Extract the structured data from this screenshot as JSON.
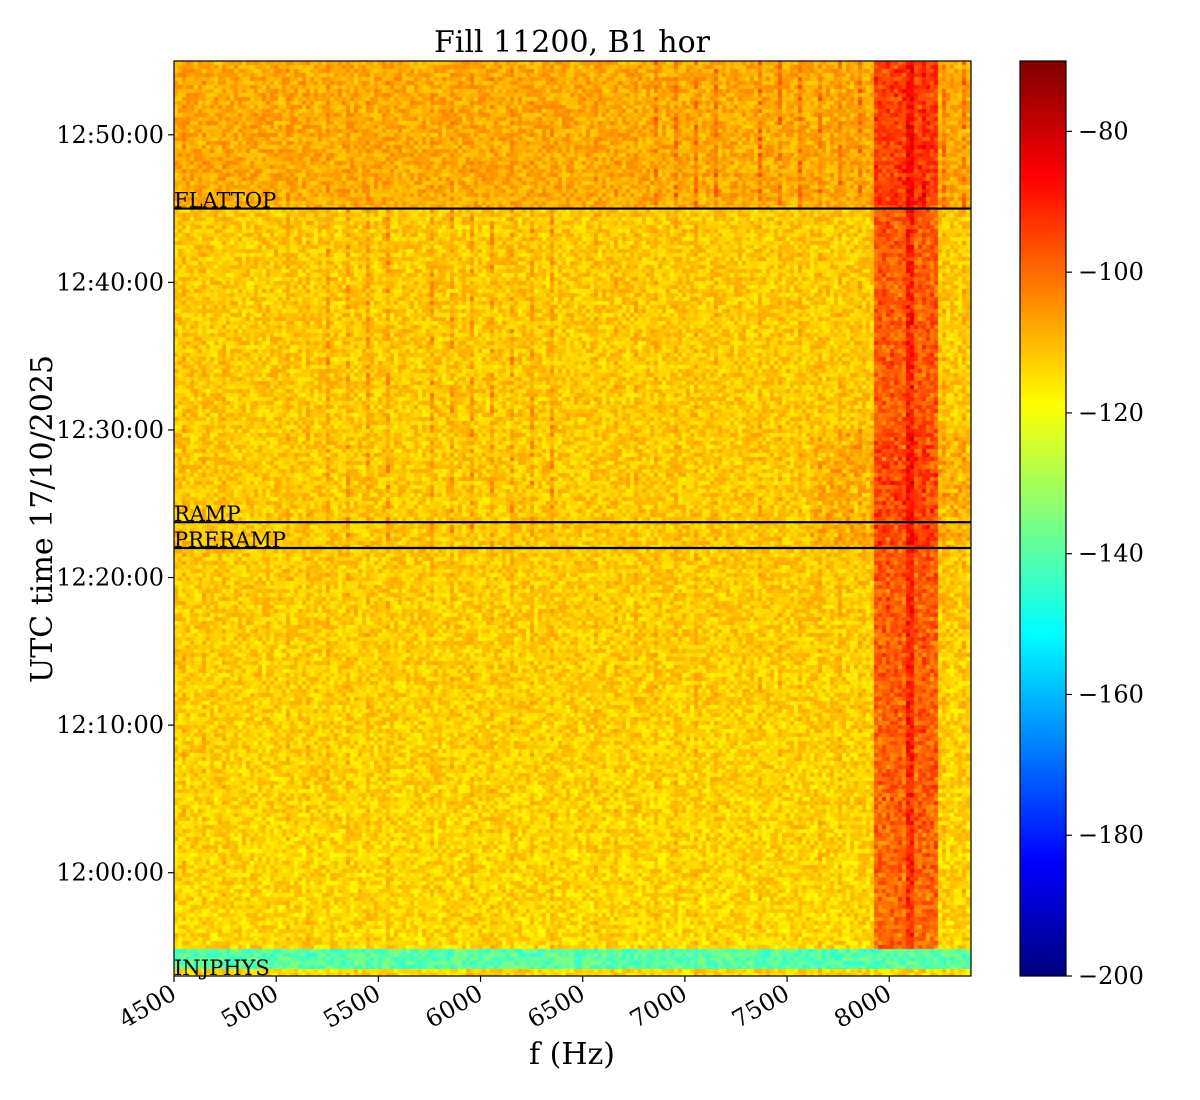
{
  "chart_data": {
    "type": "heatmap",
    "title": "Fill 11200, B1 hor",
    "xlabel": "f (Hz)",
    "ylabel": "UTC time 17/10/2025",
    "xlim": [
      4500,
      8400
    ],
    "xticks": [
      4500,
      5000,
      5500,
      6000,
      6500,
      7000,
      7500,
      8000
    ],
    "xtick_labels": [
      "4500",
      "5000",
      "5500",
      "6000",
      "6500",
      "7000",
      "7500",
      "8000"
    ],
    "ylim": [
      "11:53:00",
      "12:55:00"
    ],
    "yticks": [
      "12:00:00",
      "12:10:00",
      "12:20:00",
      "12:30:00",
      "12:40:00",
      "12:50:00"
    ],
    "ytick_labels": [
      "12:00:00",
      "12:10:00",
      "12:20:00",
      "12:30:00",
      "12:40:00",
      "12:50:00"
    ],
    "colormap": "jet",
    "colorbar": {
      "range": [
        -200,
        -70
      ],
      "ticks": [
        -80,
        -100,
        -120,
        -140,
        -160,
        -180,
        -200
      ],
      "tick_labels": [
        "−80",
        "−100",
        "−120",
        "−140",
        "−160",
        "−180",
        "−200"
      ]
    },
    "events": [
      {
        "label": "FLATTOP",
        "time": "12:45:00"
      },
      {
        "label": "RAMP",
        "time": "12:23:45"
      },
      {
        "label": "PRERAMP",
        "time": "12:22:00"
      },
      {
        "label": "INJPHYS",
        "time": "11:53:00"
      }
    ],
    "features": {
      "background_level_db": -112,
      "injection_band_level_db": -140,
      "strong_band_hz": [
        7920,
        8220
      ],
      "strong_band_level_db": -88
    }
  }
}
